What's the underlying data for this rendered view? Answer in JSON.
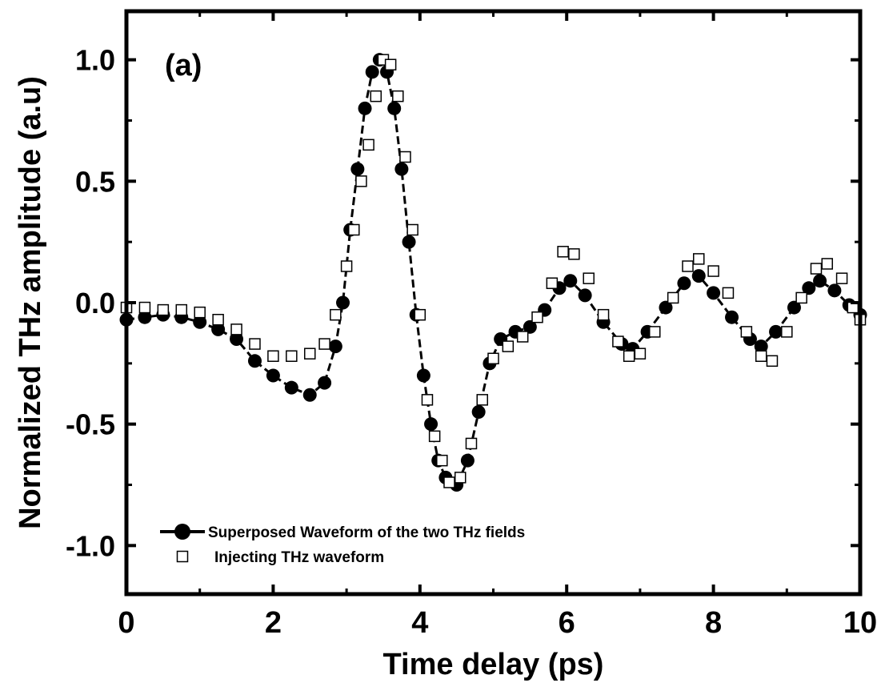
{
  "chart_data": {
    "type": "scatter",
    "panel_label": "(a)",
    "xlabel": "Time delay (ps)",
    "ylabel": "Normalized THz amplitude (a.u)",
    "xlim": [
      0,
      10
    ],
    "ylim": [
      -1.2,
      1.2
    ],
    "x_ticks": [
      0,
      2,
      4,
      6,
      8,
      10
    ],
    "y_ticks": [
      -1.0,
      -0.5,
      0.0,
      0.5,
      1.0
    ],
    "x_tick_labels": [
      "0",
      "2",
      "4",
      "6",
      "8",
      "10"
    ],
    "y_tick_labels": [
      "-1.0",
      "-0.5",
      "0.0",
      "0.5",
      "1.0"
    ],
    "grid": false,
    "legend_position": "bottom-left",
    "series": [
      {
        "name": "Superposed Waveform of the two THz fields",
        "marker": "filled-circle-with-line",
        "color": "#000000",
        "points": [
          [
            0.0,
            -0.07
          ],
          [
            0.25,
            -0.06
          ],
          [
            0.5,
            -0.05
          ],
          [
            0.75,
            -0.06
          ],
          [
            1.0,
            -0.08
          ],
          [
            1.25,
            -0.11
          ],
          [
            1.5,
            -0.15
          ],
          [
            1.75,
            -0.24
          ],
          [
            2.0,
            -0.3
          ],
          [
            2.25,
            -0.35
          ],
          [
            2.5,
            -0.38
          ],
          [
            2.7,
            -0.33
          ],
          [
            2.85,
            -0.18
          ],
          [
            2.95,
            0.0
          ],
          [
            3.05,
            0.3
          ],
          [
            3.15,
            0.55
          ],
          [
            3.25,
            0.8
          ],
          [
            3.35,
            0.95
          ],
          [
            3.45,
            1.0
          ],
          [
            3.55,
            0.95
          ],
          [
            3.65,
            0.8
          ],
          [
            3.75,
            0.55
          ],
          [
            3.85,
            0.25
          ],
          [
            3.95,
            -0.05
          ],
          [
            4.05,
            -0.3
          ],
          [
            4.15,
            -0.5
          ],
          [
            4.25,
            -0.65
          ],
          [
            4.35,
            -0.72
          ],
          [
            4.5,
            -0.75
          ],
          [
            4.65,
            -0.65
          ],
          [
            4.8,
            -0.45
          ],
          [
            4.95,
            -0.25
          ],
          [
            5.1,
            -0.15
          ],
          [
            5.3,
            -0.12
          ],
          [
            5.5,
            -0.1
          ],
          [
            5.7,
            -0.03
          ],
          [
            5.9,
            0.06
          ],
          [
            6.05,
            0.09
          ],
          [
            6.25,
            0.03
          ],
          [
            6.5,
            -0.08
          ],
          [
            6.75,
            -0.17
          ],
          [
            6.9,
            -0.19
          ],
          [
            7.1,
            -0.12
          ],
          [
            7.35,
            -0.02
          ],
          [
            7.6,
            0.08
          ],
          [
            7.8,
            0.11
          ],
          [
            8.0,
            0.04
          ],
          [
            8.25,
            -0.06
          ],
          [
            8.5,
            -0.15
          ],
          [
            8.65,
            -0.18
          ],
          [
            8.85,
            -0.12
          ],
          [
            9.1,
            -0.02
          ],
          [
            9.3,
            0.06
          ],
          [
            9.45,
            0.09
          ],
          [
            9.65,
            0.05
          ],
          [
            9.85,
            -0.01
          ],
          [
            10.0,
            -0.05
          ]
        ]
      },
      {
        "name": "Injecting THz waveform",
        "marker": "open-square",
        "color": "#000000",
        "points": [
          [
            0.0,
            -0.02
          ],
          [
            0.25,
            -0.02
          ],
          [
            0.5,
            -0.03
          ],
          [
            0.75,
            -0.03
          ],
          [
            1.0,
            -0.04
          ],
          [
            1.25,
            -0.07
          ],
          [
            1.5,
            -0.11
          ],
          [
            1.75,
            -0.17
          ],
          [
            2.0,
            -0.22
          ],
          [
            2.25,
            -0.22
          ],
          [
            2.5,
            -0.21
          ],
          [
            2.7,
            -0.17
          ],
          [
            2.85,
            -0.05
          ],
          [
            3.0,
            0.15
          ],
          [
            3.1,
            0.3
          ],
          [
            3.2,
            0.5
          ],
          [
            3.3,
            0.65
          ],
          [
            3.4,
            0.85
          ],
          [
            3.5,
            1.0
          ],
          [
            3.6,
            0.98
          ],
          [
            3.7,
            0.85
          ],
          [
            3.8,
            0.6
          ],
          [
            3.9,
            0.3
          ],
          [
            4.0,
            -0.05
          ],
          [
            4.1,
            -0.4
          ],
          [
            4.2,
            -0.55
          ],
          [
            4.3,
            -0.65
          ],
          [
            4.4,
            -0.74
          ],
          [
            4.55,
            -0.72
          ],
          [
            4.7,
            -0.58
          ],
          [
            4.85,
            -0.4
          ],
          [
            5.0,
            -0.23
          ],
          [
            5.2,
            -0.18
          ],
          [
            5.4,
            -0.14
          ],
          [
            5.6,
            -0.06
          ],
          [
            5.8,
            0.08
          ],
          [
            5.95,
            0.21
          ],
          [
            6.1,
            0.2
          ],
          [
            6.3,
            0.1
          ],
          [
            6.5,
            -0.05
          ],
          [
            6.7,
            -0.16
          ],
          [
            6.85,
            -0.22
          ],
          [
            7.0,
            -0.21
          ],
          [
            7.2,
            -0.12
          ],
          [
            7.45,
            0.02
          ],
          [
            7.65,
            0.15
          ],
          [
            7.8,
            0.18
          ],
          [
            8.0,
            0.13
          ],
          [
            8.2,
            0.04
          ],
          [
            8.45,
            -0.12
          ],
          [
            8.65,
            -0.22
          ],
          [
            8.8,
            -0.24
          ],
          [
            9.0,
            -0.12
          ],
          [
            9.2,
            0.02
          ],
          [
            9.4,
            0.14
          ],
          [
            9.55,
            0.16
          ],
          [
            9.75,
            0.1
          ],
          [
            9.9,
            -0.02
          ],
          [
            10.0,
            -0.07
          ]
        ]
      }
    ]
  }
}
